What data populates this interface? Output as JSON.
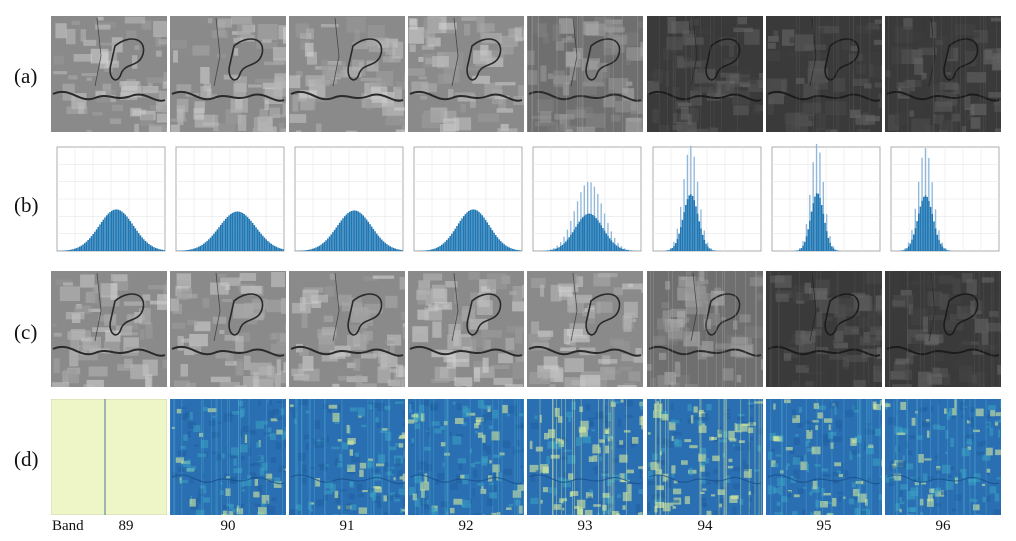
{
  "rows": [
    {
      "label": "(a)"
    },
    {
      "label": "(b)"
    },
    {
      "label": "(c)"
    },
    {
      "label": "(d)"
    }
  ],
  "band_word": "Band",
  "bands": [
    "89",
    "90",
    "91",
    "92",
    "93",
    "94",
    "95",
    "96"
  ],
  "panels_a": {
    "tone": [
      "light",
      "light",
      "light",
      "light",
      "medium",
      "dark",
      "dark",
      "dark"
    ]
  },
  "panels_c": {
    "tone": [
      "light",
      "light",
      "light",
      "light",
      "light",
      "medium",
      "dark",
      "dark"
    ]
  },
  "panels_d": {
    "style": [
      "flat",
      "noise",
      "noise",
      "noise",
      "bright",
      "bright",
      "noise",
      "noise"
    ]
  },
  "colors": {
    "hist_fill": "#1f77b4",
    "hist_light": "#8fb8da",
    "flat_panel": "#eef6c8",
    "noise_low": "#2b6fb3",
    "noise_high": "#e6f59b"
  },
  "chart_data": {
    "type": "bar",
    "title": "",
    "xlabel": "",
    "ylabel": "",
    "series": [
      {
        "band": "89",
        "center": 0.55,
        "spread": 0.16,
        "peak": 0.4,
        "narrow": false
      },
      {
        "band": "90",
        "center": 0.57,
        "spread": 0.17,
        "peak": 0.38,
        "narrow": false
      },
      {
        "band": "91",
        "center": 0.55,
        "spread": 0.16,
        "peak": 0.39,
        "narrow": false
      },
      {
        "band": "92",
        "center": 0.55,
        "spread": 0.15,
        "peak": 0.4,
        "narrow": false
      },
      {
        "band": "93",
        "center": 0.52,
        "spread": 0.13,
        "peak": 0.58,
        "narrow": true
      },
      {
        "band": "94",
        "center": 0.35,
        "spread": 0.07,
        "peak": 0.88,
        "narrow": true
      },
      {
        "band": "95",
        "center": 0.42,
        "spread": 0.06,
        "peak": 0.9,
        "narrow": true
      },
      {
        "band": "96",
        "center": 0.32,
        "spread": 0.07,
        "peak": 0.86,
        "narrow": true
      }
    ]
  }
}
